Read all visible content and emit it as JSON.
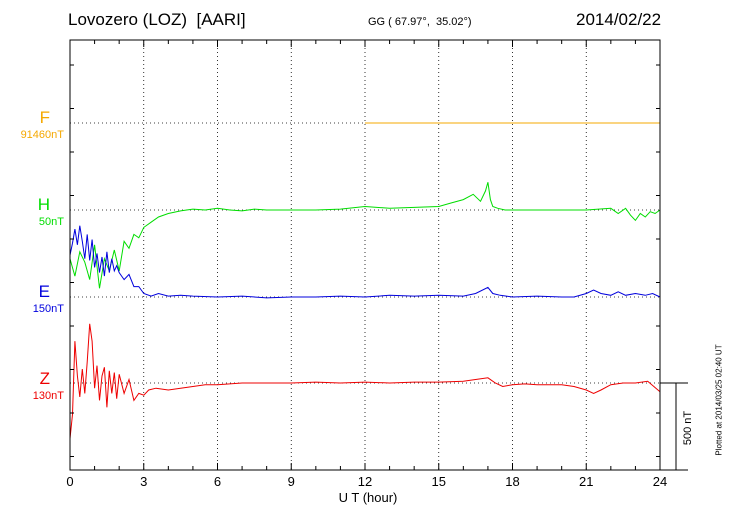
{
  "header": {
    "station": "Lovozero (LOZ)  [AARI]",
    "coords": "GG ( 67.97°,  35.02°)",
    "date": "2014/02/22"
  },
  "axis": {
    "xlabel": "U T (hour)",
    "ticks": [
      "0",
      "3",
      "6",
      "9",
      "12",
      "15",
      "18",
      "21",
      "24"
    ]
  },
  "scale_bar": "500 nT",
  "plotted_note": "Plotted at 2014/03/25 02:40 UT",
  "channels": [
    {
      "name": "F",
      "scale": "91460nT",
      "color": "#f5a800"
    },
    {
      "name": "H",
      "scale": "50nT",
      "color": "#00dd00"
    },
    {
      "name": "E",
      "scale": "150nT",
      "color": "#0000dd"
    },
    {
      "name": "Z",
      "scale": "130nT",
      "color": "#ee0000"
    }
  ],
  "chart_data": {
    "type": "line",
    "x_unit": "hour UT",
    "xlim": [
      0,
      24
    ],
    "grid": true,
    "scale_bar_nT": 500,
    "series": [
      {
        "name": "F",
        "x": [
          12.0,
          24.0
        ],
        "y": [
          0,
          0
        ]
      },
      {
        "name": "H",
        "x": [
          0.0,
          0.2,
          0.4,
          0.6,
          0.8,
          1.0,
          1.2,
          1.4,
          1.6,
          1.8,
          2.0,
          2.2,
          2.4,
          2.6,
          2.8,
          3.0,
          3.3,
          3.6,
          4.0,
          4.5,
          5.0,
          5.5,
          6.0,
          6.5,
          7.0,
          7.5,
          8.0,
          9.0,
          10.0,
          11.0,
          12.0,
          13.0,
          14.0,
          15.0,
          15.5,
          16.0,
          16.4,
          16.7,
          16.9,
          17.0,
          17.1,
          17.2,
          17.4,
          17.7,
          18.0,
          19.0,
          20.0,
          21.0,
          22.0,
          22.3,
          22.6,
          22.8,
          23.0,
          23.2,
          23.4,
          23.6,
          23.8,
          24.0
        ],
        "y": [
          -280,
          -380,
          -240,
          -300,
          -400,
          -200,
          -450,
          -280,
          -350,
          -230,
          -350,
          -180,
          -220,
          -140,
          -160,
          -100,
          -70,
          -40,
          -20,
          -5,
          5,
          0,
          10,
          0,
          -5,
          5,
          0,
          0,
          0,
          5,
          20,
          10,
          15,
          20,
          40,
          60,
          90,
          50,
          110,
          160,
          60,
          20,
          10,
          0,
          0,
          0,
          0,
          0,
          10,
          -20,
          10,
          -30,
          -60,
          -20,
          -40,
          -10,
          -20,
          0
        ]
      },
      {
        "name": "E",
        "x": [
          0.0,
          0.1,
          0.2,
          0.3,
          0.4,
          0.5,
          0.6,
          0.7,
          0.8,
          0.9,
          1.0,
          1.1,
          1.2,
          1.3,
          1.4,
          1.5,
          1.6,
          1.7,
          1.8,
          1.9,
          2.0,
          2.2,
          2.4,
          2.6,
          2.8,
          3.0,
          3.3,
          3.6,
          4.0,
          4.5,
          5.0,
          6.0,
          7.0,
          8.0,
          9.0,
          10.0,
          11.0,
          12.0,
          13.0,
          14.0,
          15.0,
          16.0,
          16.5,
          17.0,
          17.2,
          17.5,
          18.0,
          19.0,
          20.0,
          20.5,
          21.0,
          21.3,
          21.6,
          22.0,
          22.3,
          22.6,
          23.0,
          23.4,
          23.7,
          24.0
        ],
        "y": [
          240,
          310,
          390,
          300,
          410,
          320,
          220,
          360,
          210,
          330,
          170,
          250,
          140,
          230,
          120,
          260,
          140,
          220,
          150,
          180,
          140,
          100,
          130,
          60,
          60,
          20,
          5,
          20,
          5,
          10,
          5,
          0,
          5,
          -5,
          0,
          0,
          5,
          0,
          10,
          5,
          10,
          5,
          20,
          55,
          20,
          10,
          0,
          5,
          0,
          0,
          20,
          40,
          20,
          10,
          30,
          10,
          20,
          10,
          20,
          0
        ]
      },
      {
        "name": "Z",
        "x": [
          0.0,
          0.1,
          0.2,
          0.3,
          0.4,
          0.5,
          0.6,
          0.7,
          0.8,
          0.9,
          1.0,
          1.1,
          1.2,
          1.3,
          1.4,
          1.5,
          1.6,
          1.7,
          1.8,
          1.9,
          2.0,
          2.2,
          2.4,
          2.6,
          2.8,
          3.0,
          3.2,
          3.5,
          4.0,
          4.5,
          5.0,
          5.5,
          6.0,
          7.0,
          8.0,
          9.0,
          10.0,
          11.0,
          12.0,
          13.0,
          14.0,
          15.0,
          16.0,
          16.5,
          17.0,
          17.3,
          17.6,
          18.0,
          18.5,
          19.0,
          20.0,
          20.5,
          21.0,
          21.3,
          21.6,
          22.0,
          22.5,
          23.0,
          23.5,
          24.0
        ],
        "y": [
          -320,
          -180,
          240,
          40,
          -80,
          80,
          -60,
          120,
          340,
          240,
          -30,
          100,
          -100,
          40,
          90,
          -140,
          70,
          -60,
          60,
          -90,
          50,
          -60,
          20,
          -100,
          -60,
          -70,
          -40,
          -30,
          -40,
          -30,
          -20,
          -10,
          -10,
          0,
          0,
          0,
          5,
          0,
          5,
          0,
          5,
          5,
          10,
          20,
          30,
          0,
          -20,
          -10,
          -5,
          -10,
          -10,
          -20,
          -40,
          -60,
          -40,
          -10,
          0,
          0,
          10,
          -50
        ]
      }
    ]
  }
}
